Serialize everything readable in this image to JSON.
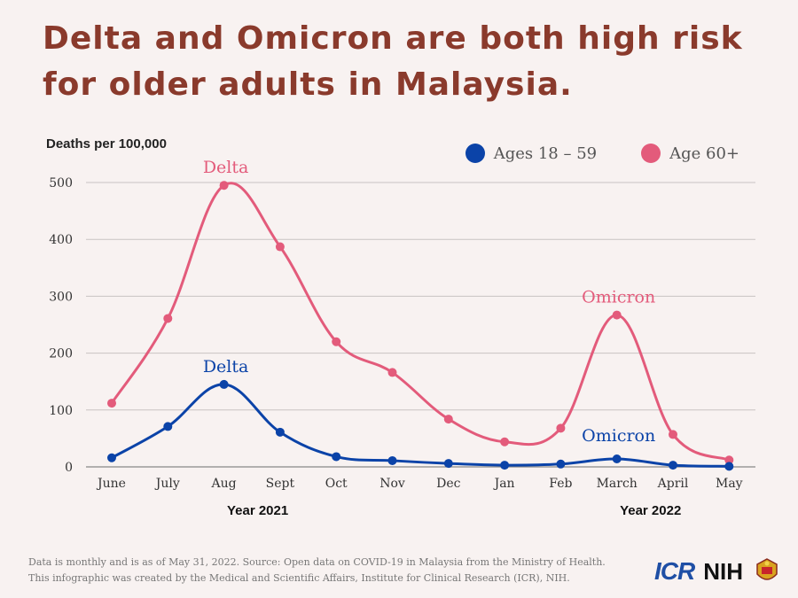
{
  "title": {
    "part1": "Delta and Omicron are both ",
    "bold": "high risk for older adults",
    "part2": " in Malaysia."
  },
  "footer": {
    "line1": "Data is monthly and is as of May 31, 2022. Source: Open data on COVID-19 in Malaysia from the Ministry of Health.",
    "line2": "This infographic was created by the Medical and Scientific Affairs, Institute for Clinical Research (ICR), NIH."
  },
  "logos": {
    "icr": "ICR",
    "nih": "NIH"
  },
  "colors": {
    "young": "#0b43a8",
    "old": "#e35b7b",
    "title": "#8a3a2c"
  },
  "chart_data": {
    "type": "line",
    "title": "",
    "ylabel": "Deaths per 100,000",
    "xlabel": "",
    "ylim": [
      0,
      500
    ],
    "yticks": [
      0,
      100,
      200,
      300,
      400,
      500
    ],
    "grid": true,
    "legend_position": "top-right",
    "categories": [
      "June",
      "July",
      "Aug",
      "Sept",
      "Oct",
      "Nov",
      "Dec",
      "Jan",
      "Feb",
      "March",
      "April",
      "May"
    ],
    "year_labels": [
      {
        "label": "Year 2021",
        "category": "Aug"
      },
      {
        "label": "Year 2022",
        "category": "March"
      }
    ],
    "series": [
      {
        "name": "Ages 18 – 59",
        "color": "#0b43a8",
        "values": [
          16,
          71,
          145,
          61,
          18,
          11,
          6,
          3,
          5,
          14,
          3,
          1
        ]
      },
      {
        "name": "Age 60+",
        "color": "#e35b7b",
        "values": [
          112,
          261,
          495,
          387,
          220,
          166,
          84,
          44,
          68,
          267,
          57,
          12
        ]
      }
    ],
    "annotations": [
      {
        "text": "Delta",
        "series": 1,
        "category": "Aug",
        "color": "#e35b7b"
      },
      {
        "text": "Delta",
        "series": 0,
        "category": "Aug",
        "color": "#0b43a8"
      },
      {
        "text": "Omicron",
        "series": 1,
        "category": "March",
        "color": "#e35b7b"
      },
      {
        "text": "Omicron",
        "series": 0,
        "category": "March",
        "color": "#0b43a8"
      }
    ]
  }
}
